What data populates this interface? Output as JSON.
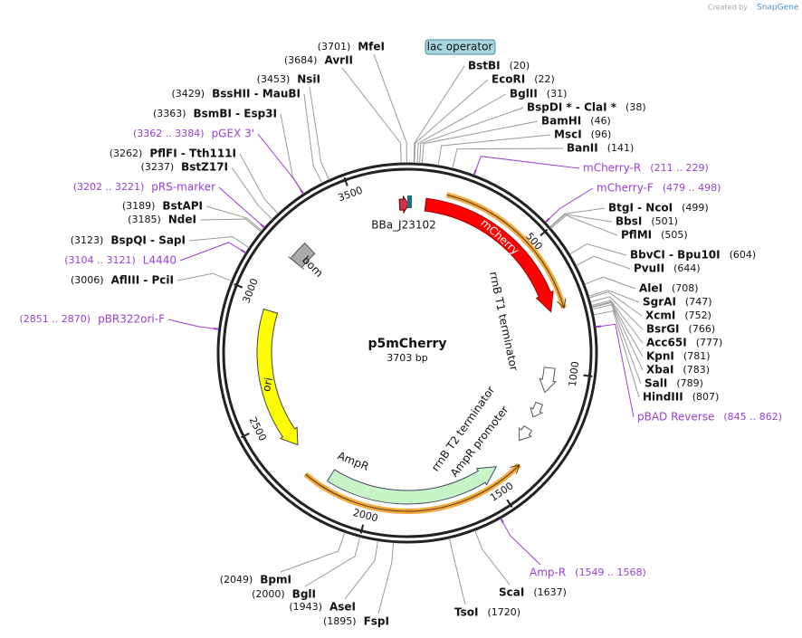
{
  "header": {
    "credit": "Created by",
    "brand": "SnapGene"
  },
  "map": {
    "name": "p5mCherry",
    "length": "3703 bp"
  },
  "ruler": [
    500,
    1000,
    1500,
    2000,
    2500,
    3000,
    3500
  ],
  "features": [
    "mCherry",
    "rrnB T1 terminator",
    "rrnB T2 terminator",
    "AmpR promoter",
    "AmpR",
    "ori",
    "bom",
    "BBa_J23102",
    "lac operator"
  ],
  "sites": [
    {
      "name": "BstBI",
      "position": "(20)"
    },
    {
      "name": "EcoRI",
      "position": "(22)"
    },
    {
      "name": "BglII",
      "position": "(31)"
    },
    {
      "name": "BspDI * - ClaI *",
      "position": "(38)"
    },
    {
      "name": "BamHI",
      "position": "(46)"
    },
    {
      "name": "MscI",
      "position": "(96)"
    },
    {
      "name": "BanII",
      "position": "(141)"
    },
    {
      "name": "BtgI - NcoI",
      "position": "(499)"
    },
    {
      "name": "BbsI",
      "position": "(501)"
    },
    {
      "name": "PflMI",
      "position": "(505)"
    },
    {
      "name": "BbvCI - Bpu10I",
      "position": "(604)"
    },
    {
      "name": "PvuII",
      "position": "(644)"
    },
    {
      "name": "AleI",
      "position": "(708)"
    },
    {
      "name": "SgrAI",
      "position": "(747)"
    },
    {
      "name": "XcmI",
      "position": "(752)"
    },
    {
      "name": "BsrGI",
      "position": "(766)"
    },
    {
      "name": "Acc65I",
      "position": "(777)"
    },
    {
      "name": "KpnI",
      "position": "(781)"
    },
    {
      "name": "XbaI",
      "position": "(783)"
    },
    {
      "name": "SalI",
      "position": "(789)"
    },
    {
      "name": "HindIII",
      "position": "(807)"
    },
    {
      "name": "ScaI",
      "position": "(1637)"
    },
    {
      "name": "TsoI",
      "position": "(1720)"
    },
    {
      "name": "FspI",
      "position": "(1895)"
    },
    {
      "name": "AseI",
      "position": "(1943)"
    },
    {
      "name": "BglI",
      "position": "(2000)"
    },
    {
      "name": "BpmI",
      "position": "(2049)"
    },
    {
      "name": "AflIII - PciI",
      "position": "(3006)"
    },
    {
      "name": "BspQI - SapI",
      "position": "(3123)"
    },
    {
      "name": "NdeI",
      "position": "(3185)"
    },
    {
      "name": "BstAPI",
      "position": "(3189)"
    },
    {
      "name": "BstZ17I",
      "position": "(3237)"
    },
    {
      "name": "PflFI - Tth111I",
      "position": "(3262)"
    },
    {
      "name": "BsmBI - Esp3I",
      "position": "(3363)"
    },
    {
      "name": "BssHII - MauBI",
      "position": "(3429)"
    },
    {
      "name": "NsiI",
      "position": "(3453)"
    },
    {
      "name": "AvrII",
      "position": "(3684)"
    },
    {
      "name": "MfeI",
      "position": "(3701)"
    }
  ],
  "primers": [
    {
      "name": "mCherry-R",
      "range": "(211 .. 229)"
    },
    {
      "name": "mCherry-F",
      "range": "(479 .. 498)"
    },
    {
      "name": "pBAD Reverse",
      "range": "(845 .. 862)"
    },
    {
      "name": "Amp-R",
      "range": "(1549 .. 1568)"
    },
    {
      "name": "pBR322ori-F",
      "range": "(2851 .. 2870)"
    },
    {
      "name": "L4440",
      "range": "(3104 .. 3121)"
    },
    {
      "name": "pRS-marker",
      "range": "(3202 .. 3221)"
    },
    {
      "name": "pGEX 3'",
      "range": "(3362 .. 3384)"
    }
  ]
}
